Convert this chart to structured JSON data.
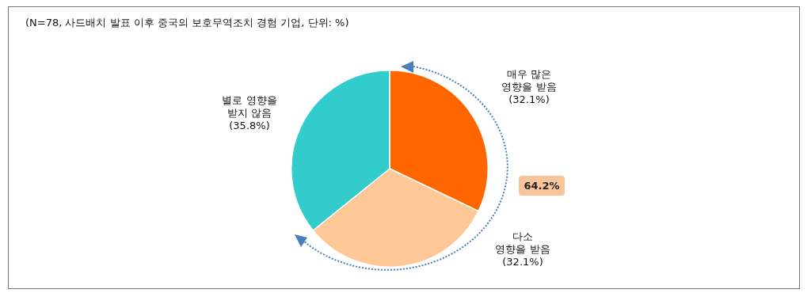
{
  "chart_data": {
    "type": "pie",
    "title": "(N=78, 사드배치 발표 이후 중국의 보호무역조치 경험 기업, 단위: %)",
    "categories": [
      "매우 많은\n영향을 받음",
      "다소\n영향을 받음",
      "별로 영향을\n받지 않음"
    ],
    "values": [
      32.1,
      32.1,
      35.8
    ],
    "colors": [
      "#ff6600",
      "#fdc896",
      "#33cccc"
    ],
    "value_labels": [
      "(32.1%)",
      "(32.1%)",
      "(35.8%)"
    ],
    "annotations": [
      "64.2%"
    ]
  }
}
